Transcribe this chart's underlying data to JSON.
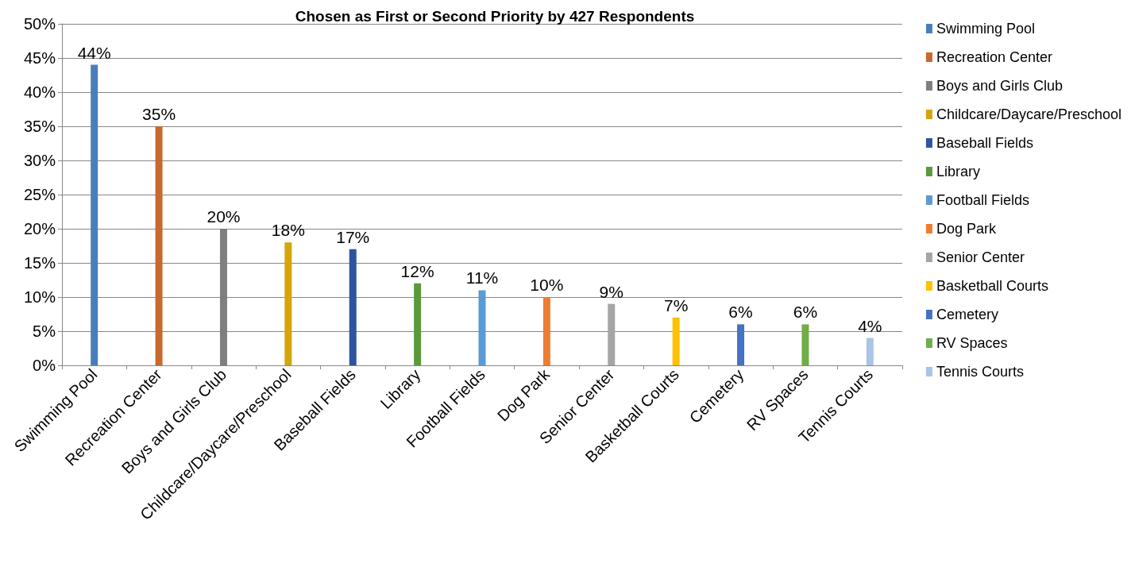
{
  "chart_data": {
    "type": "bar",
    "title": "Chosen as First or Second Priority by 427 Respondents",
    "categories": [
      "Swimming Pool",
      "Recreation Center",
      "Boys and Girls Club",
      "Childcare/Daycare/Preschool",
      "Baseball Fields",
      "Library",
      "Football Fields",
      "Dog Park",
      "Senior Center",
      "Basketball Courts",
      "Cemetery",
      "RV Spaces",
      "Tennis Courts"
    ],
    "series": [
      {
        "name": "Swimming Pool",
        "color": "#4a7ebb",
        "values": [
          44,
          null,
          null,
          null,
          null,
          null,
          null,
          null,
          null,
          null,
          null,
          null,
          null
        ],
        "value_labels": [
          "44%",
          null,
          null,
          null,
          null,
          null,
          null,
          null,
          null,
          null,
          null,
          null,
          null
        ]
      },
      {
        "name": "Recreation Center",
        "color": "#c8692e",
        "values": [
          null,
          35,
          null,
          null,
          null,
          null,
          null,
          null,
          null,
          null,
          null,
          null,
          null
        ],
        "value_labels": [
          null,
          "35%",
          null,
          null,
          null,
          null,
          null,
          null,
          null,
          null,
          null,
          null,
          null
        ]
      },
      {
        "name": "Boys and Girls Club",
        "color": "#7f7f7f",
        "values": [
          null,
          null,
          20,
          null,
          null,
          null,
          null,
          null,
          null,
          null,
          null,
          null,
          null
        ],
        "value_labels": [
          null,
          null,
          "20%",
          null,
          null,
          null,
          null,
          null,
          null,
          null,
          null,
          null,
          null
        ]
      },
      {
        "name": "Childcare/Daycare/Preschool",
        "color": "#d4a50c",
        "values": [
          null,
          null,
          null,
          18,
          null,
          null,
          null,
          null,
          null,
          null,
          null,
          null,
          null
        ],
        "value_labels": [
          null,
          null,
          null,
          "18%",
          null,
          null,
          null,
          null,
          null,
          null,
          null,
          null,
          null
        ]
      },
      {
        "name": "Baseball Fields",
        "color": "#2e54a0",
        "values": [
          null,
          null,
          null,
          null,
          17,
          null,
          null,
          null,
          null,
          null,
          null,
          null,
          null
        ],
        "value_labels": [
          null,
          null,
          null,
          null,
          "17%",
          null,
          null,
          null,
          null,
          null,
          null,
          null,
          null
        ]
      },
      {
        "name": "Library",
        "color": "#5b9a3b",
        "values": [
          null,
          null,
          null,
          null,
          null,
          12,
          null,
          null,
          null,
          null,
          null,
          null,
          null
        ],
        "value_labels": [
          null,
          null,
          null,
          null,
          null,
          "12%",
          null,
          null,
          null,
          null,
          null,
          null,
          null
        ]
      },
      {
        "name": "Football Fields",
        "color": "#5a9bd5",
        "values": [
          null,
          null,
          null,
          null,
          null,
          null,
          11,
          null,
          null,
          null,
          null,
          null,
          null
        ],
        "value_labels": [
          null,
          null,
          null,
          null,
          null,
          null,
          "11%",
          null,
          null,
          null,
          null,
          null,
          null
        ]
      },
      {
        "name": "Dog Park",
        "color": "#ed7d31",
        "values": [
          null,
          null,
          null,
          null,
          null,
          null,
          null,
          10,
          null,
          null,
          null,
          null,
          null
        ],
        "value_labels": [
          null,
          null,
          null,
          null,
          null,
          null,
          null,
          "10%",
          null,
          null,
          null,
          null,
          null
        ]
      },
      {
        "name": "Senior Center",
        "color": "#a5a5a5",
        "values": [
          null,
          null,
          null,
          null,
          null,
          null,
          null,
          null,
          9,
          null,
          null,
          null,
          null
        ],
        "value_labels": [
          null,
          null,
          null,
          null,
          null,
          null,
          null,
          null,
          "9%",
          null,
          null,
          null,
          null
        ]
      },
      {
        "name": "Basketball Courts",
        "color": "#ffc000",
        "values": [
          null,
          null,
          null,
          null,
          null,
          null,
          null,
          null,
          null,
          7,
          null,
          null,
          null
        ],
        "value_labels": [
          null,
          null,
          null,
          null,
          null,
          null,
          null,
          null,
          null,
          "7%",
          null,
          null,
          null
        ]
      },
      {
        "name": "Cemetery",
        "color": "#4472c4",
        "values": [
          null,
          null,
          null,
          null,
          null,
          null,
          null,
          null,
          null,
          null,
          6,
          null,
          null
        ],
        "value_labels": [
          null,
          null,
          null,
          null,
          null,
          null,
          null,
          null,
          null,
          null,
          "6%",
          null,
          null
        ]
      },
      {
        "name": "RV Spaces",
        "color": "#70ad47",
        "values": [
          null,
          null,
          null,
          null,
          null,
          null,
          null,
          null,
          null,
          null,
          null,
          6,
          null
        ],
        "value_labels": [
          null,
          null,
          null,
          null,
          null,
          null,
          null,
          null,
          null,
          null,
          null,
          "6%",
          null
        ]
      },
      {
        "name": "Tennis Courts",
        "color": "#a9c4e6",
        "values": [
          null,
          null,
          null,
          null,
          null,
          null,
          null,
          null,
          null,
          null,
          null,
          null,
          4
        ],
        "value_labels": [
          null,
          null,
          null,
          null,
          null,
          null,
          null,
          null,
          null,
          null,
          null,
          null,
          "4%"
        ]
      }
    ],
    "stacked": true,
    "ylim": [
      0,
      50
    ],
    "yticks": [
      {
        "value": 0,
        "label": "0%"
      },
      {
        "value": 5,
        "label": "5%"
      },
      {
        "value": 10,
        "label": "10%"
      },
      {
        "value": 15,
        "label": "15%"
      },
      {
        "value": 20,
        "label": "20%"
      },
      {
        "value": 25,
        "label": "25%"
      },
      {
        "value": 30,
        "label": "30%"
      },
      {
        "value": 35,
        "label": "35%"
      },
      {
        "value": 40,
        "label": "40%"
      },
      {
        "value": 45,
        "label": "45%"
      },
      {
        "value": 50,
        "label": "50%"
      }
    ],
    "grid": "y",
    "legend": "right"
  }
}
